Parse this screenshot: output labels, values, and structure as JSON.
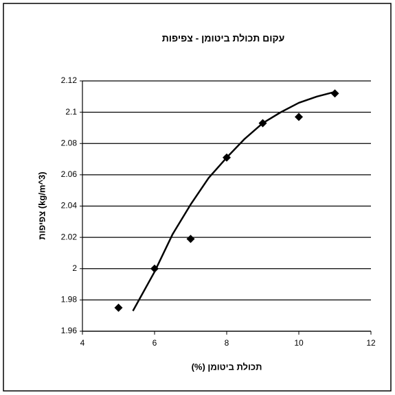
{
  "chart_data": {
    "type": "scatter",
    "title": "עקום תכולת ביטומן - צפיפות",
    "x_label": "תכולת ביטומן (%)",
    "y_label": "צפיפות (kg/m^3)",
    "x": [
      5,
      6,
      7,
      8,
      9,
      10,
      11
    ],
    "values": [
      1.975,
      2.0,
      2.019,
      2.071,
      2.093,
      2.097,
      2.112
    ],
    "color": "#000000",
    "trendline": {
      "x": [
        5.4,
        6,
        6.5,
        7,
        7.5,
        8,
        8.5,
        9,
        9.5,
        10,
        10.5,
        11
      ],
      "values": [
        1.973,
        1.998,
        2.022,
        2.041,
        2.058,
        2.071,
        2.083,
        2.093,
        2.1,
        2.106,
        2.11,
        2.113
      ]
    },
    "xlim": [
      4,
      12
    ],
    "xticks": [
      4,
      6,
      8,
      10,
      12
    ],
    "ylim": [
      1.96,
      2.12
    ],
    "yticks": [
      1.96,
      1.98,
      2,
      2.02,
      2.04,
      2.06,
      2.08,
      2.1,
      2.12
    ],
    "grid": true
  }
}
